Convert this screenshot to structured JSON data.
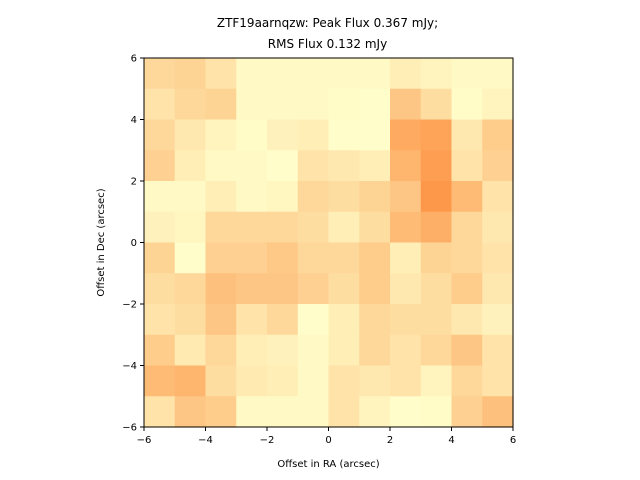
{
  "chart_data": {
    "type": "heatmap",
    "title_lines": [
      "ZTF19aarnqzw: Peak Flux 0.367 mJy;",
      "RMS Flux 0.132 mJy"
    ],
    "xlabel": "Offset in RA (arcsec)",
    "ylabel": "Offset in Dec (arcsec)",
    "xlim": [
      -6,
      6
    ],
    "ylim": [
      -6,
      6
    ],
    "x_ticks": [
      -6,
      -4,
      -2,
      0,
      2,
      4,
      6
    ],
    "y_ticks": [
      -6,
      -4,
      -2,
      0,
      2,
      4,
      6
    ],
    "x_tick_labels": [
      "−6",
      "−4",
      "−2",
      "0",
      "2",
      "4",
      "6"
    ],
    "y_tick_labels": [
      "−6",
      "−4",
      "−2",
      "0",
      "2",
      "4",
      "6"
    ],
    "color_low": "#ffffcc",
    "color_high": "#fd8d3c",
    "grid": false,
    "rows_top_to_bottom": [
      [
        0.35,
        0.38,
        0.25,
        0.05,
        0.05,
        0.05,
        0.05,
        0.05,
        0.15,
        0.1,
        0.05,
        0.05
      ],
      [
        0.25,
        0.35,
        0.38,
        0.05,
        0.05,
        0.05,
        0.03,
        0.02,
        0.5,
        0.3,
        0.03,
        0.1
      ],
      [
        0.35,
        0.2,
        0.1,
        0.03,
        0.12,
        0.15,
        0.02,
        0.02,
        0.75,
        0.8,
        0.2,
        0.45
      ],
      [
        0.4,
        0.15,
        0.05,
        0.05,
        0.02,
        0.25,
        0.2,
        0.15,
        0.65,
        0.85,
        0.25,
        0.4
      ],
      [
        0.05,
        0.05,
        0.15,
        0.05,
        0.08,
        0.35,
        0.3,
        0.38,
        0.5,
        0.9,
        0.6,
        0.25
      ],
      [
        0.12,
        0.08,
        0.35,
        0.35,
        0.35,
        0.3,
        0.15,
        0.3,
        0.6,
        0.7,
        0.35,
        0.2
      ],
      [
        0.38,
        0.02,
        0.4,
        0.4,
        0.48,
        0.35,
        0.35,
        0.45,
        0.15,
        0.38,
        0.35,
        0.25
      ],
      [
        0.3,
        0.35,
        0.55,
        0.5,
        0.5,
        0.4,
        0.3,
        0.45,
        0.2,
        0.3,
        0.45,
        0.2
      ],
      [
        0.25,
        0.3,
        0.5,
        0.25,
        0.35,
        0.02,
        0.15,
        0.35,
        0.3,
        0.3,
        0.2,
        0.12
      ],
      [
        0.45,
        0.18,
        0.35,
        0.15,
        0.12,
        0.05,
        0.15,
        0.35,
        0.25,
        0.35,
        0.5,
        0.25
      ],
      [
        0.6,
        0.65,
        0.3,
        0.18,
        0.15,
        0.05,
        0.25,
        0.2,
        0.25,
        0.1,
        0.35,
        0.25
      ],
      [
        0.25,
        0.5,
        0.45,
        0.05,
        0.05,
        0.05,
        0.25,
        0.1,
        0.02,
        0.03,
        0.4,
        0.55
      ]
    ]
  }
}
